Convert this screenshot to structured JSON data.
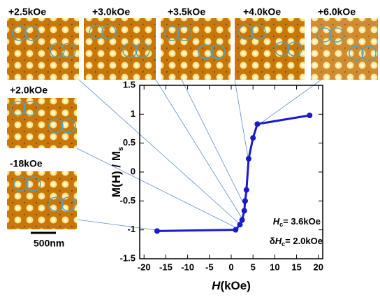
{
  "chart_data": {
    "type": "line",
    "x_label": {
      "symbol": "H",
      "text": "(kOe)"
    },
    "y_label": {
      "text": "M(H) / M",
      "subscript": "s"
    },
    "x": [
      -17,
      1,
      2,
      2.5,
      3,
      3.2,
      3.5,
      4,
      5,
      6,
      18
    ],
    "series": [
      {
        "color": "#1a1acc",
        "values": [
          -1.02,
          -1.0,
          -0.91,
          -0.83,
          -0.67,
          -0.5,
          -0.31,
          0.23,
          0.59,
          0.83,
          0.98
        ]
      }
    ],
    "xlim": [
      -21,
      21
    ],
    "ylim": [
      -1.5,
      1.5
    ],
    "xticks": [
      -20,
      -15,
      -10,
      -5,
      0,
      5,
      10,
      15,
      20
    ],
    "yticks": [
      -1.5,
      -1,
      -0.5,
      0,
      0.5,
      1,
      1.5
    ],
    "annotations": [
      {
        "prefix": "",
        "symbol": "H",
        "subscript": "c",
        "text": "= 3.6kOe"
      },
      {
        "prefix": "δ",
        "symbol": "H",
        "subscript": "c",
        "text": "= 2.0kOe"
      }
    ],
    "panels": [
      "+2.5kOe",
      "+3.0kOe",
      "+3.5kOe",
      "+4.0kOe",
      "+6.0kOe",
      "+2.0kOe",
      "-18kOe"
    ],
    "scale_bar": "500nm"
  }
}
